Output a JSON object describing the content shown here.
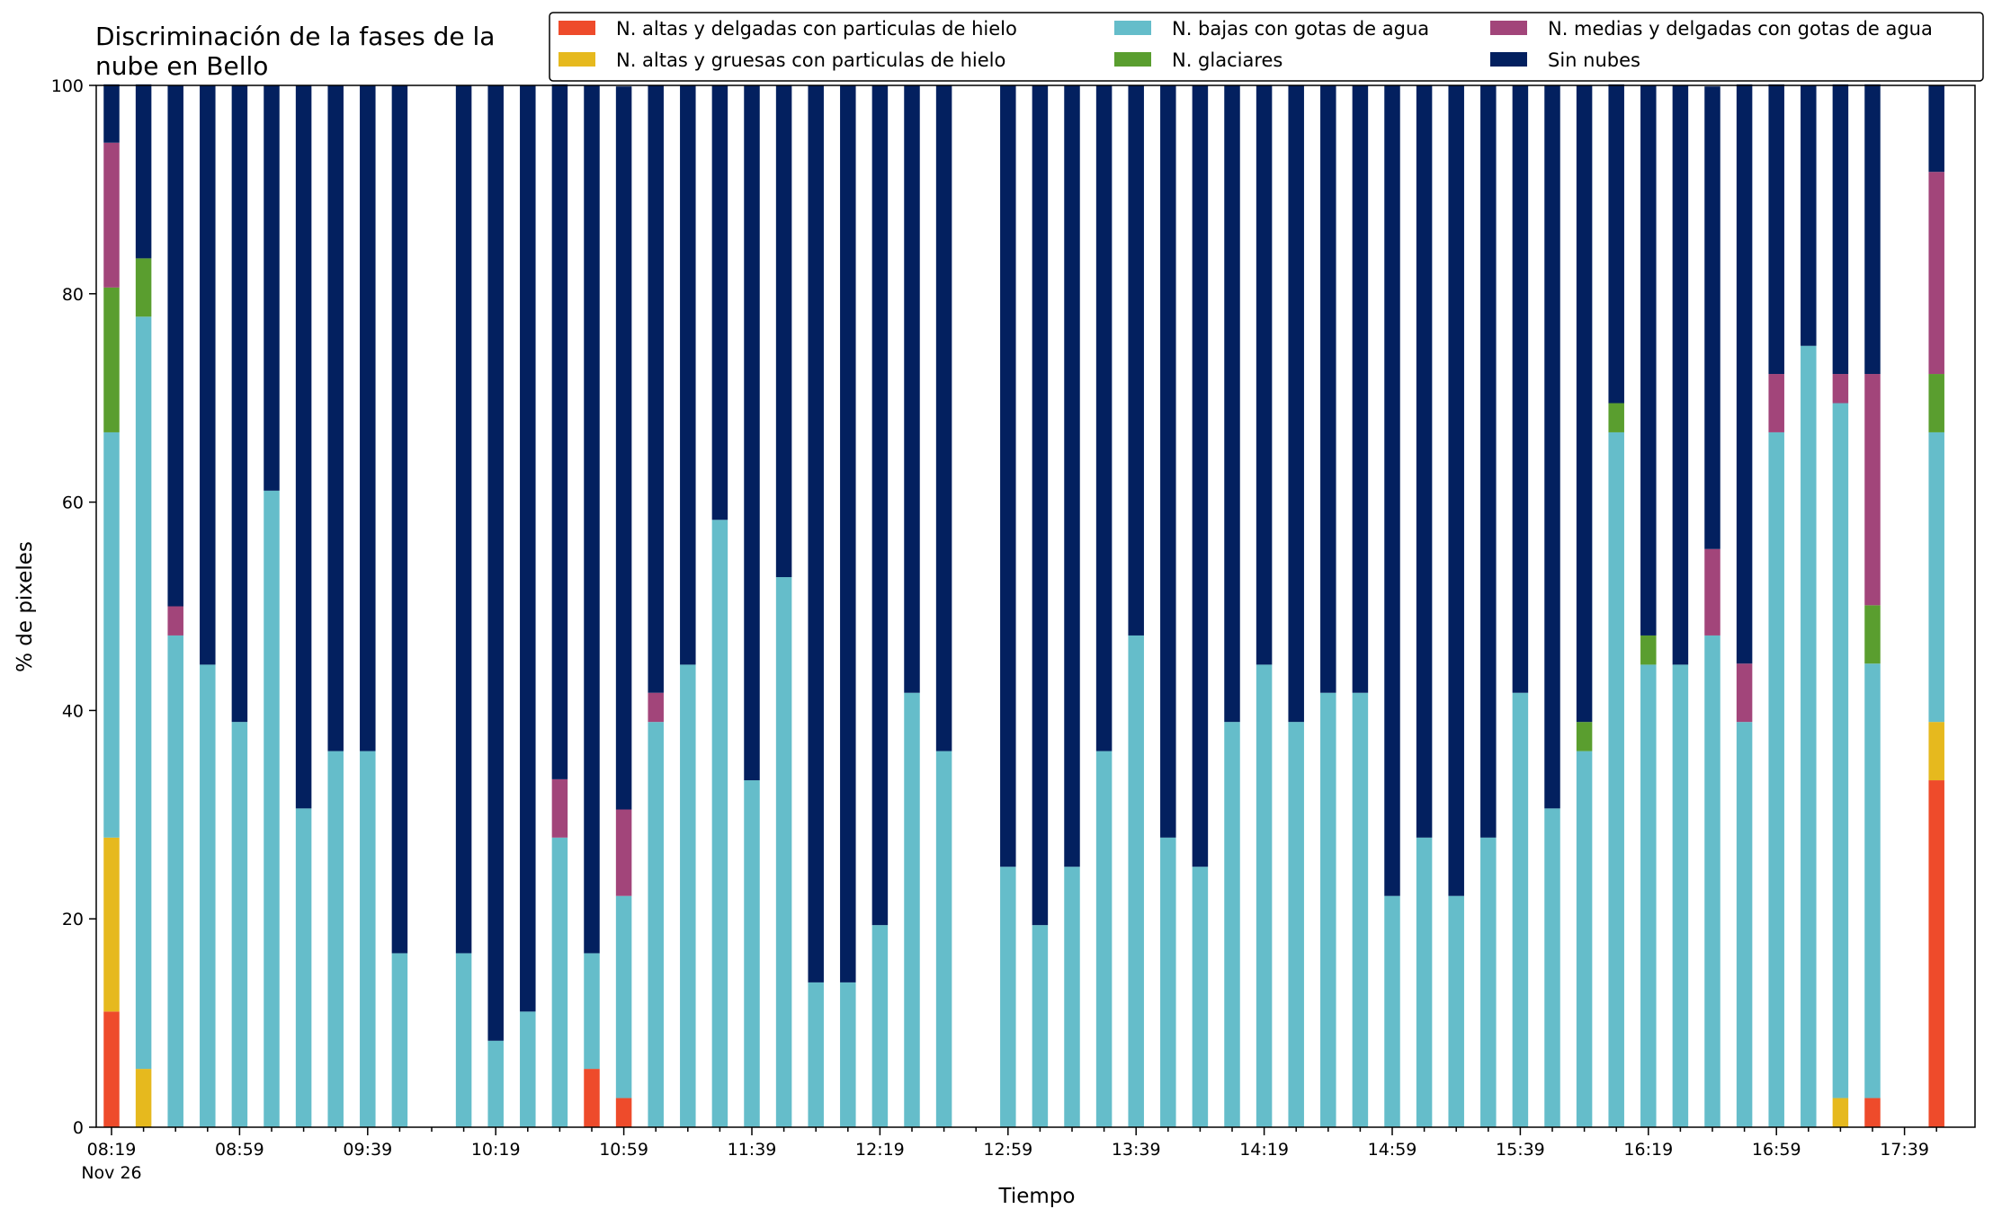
{
  "chart_data": {
    "type": "bar",
    "stacked": true,
    "title_lines": [
      "Discriminación de la fases de la",
      "nube en Bello"
    ],
    "xlabel": "Tiempo",
    "ylabel": "% de pixeles",
    "ylim": [
      0,
      100
    ],
    "yticks": [
      0,
      20,
      40,
      60,
      80,
      100
    ],
    "grid": false,
    "legend_position": "top-right",
    "x_tick_labels": [
      "08:19",
      "08:59",
      "09:39",
      "10:19",
      "10:59",
      "11:39",
      "12:19",
      "12:59",
      "13:39",
      "14:19",
      "14:59",
      "15:39",
      "16:19",
      "16:59",
      "17:39"
    ],
    "x_tick_sublabel": "Nov 26",
    "major_tick_slots": [
      0,
      4,
      8,
      12,
      16,
      20,
      24,
      28,
      32,
      36,
      40,
      44,
      48,
      52,
      56
    ],
    "time_slots": [
      "08:19",
      "08:29",
      "08:39",
      "08:49",
      "08:59",
      "09:09",
      "09:19",
      "09:29",
      "09:39",
      "09:49",
      "09:59",
      "10:09",
      "10:19",
      "10:29",
      "10:39",
      "10:49",
      "10:59",
      "11:09",
      "11:19",
      "11:29",
      "11:39",
      "11:49",
      "11:59",
      "12:09",
      "12:19",
      "12:29",
      "12:39",
      "12:49",
      "12:59",
      "13:09",
      "13:19",
      "13:29",
      "13:39",
      "13:49",
      "13:59",
      "14:09",
      "14:19",
      "14:29",
      "14:39",
      "14:49",
      "14:59",
      "15:09",
      "15:19",
      "15:29",
      "15:39",
      "15:49",
      "15:59",
      "16:09",
      "16:19",
      "16:29",
      "16:39",
      "16:49",
      "16:59",
      "17:09",
      "17:19",
      "17:29",
      "17:39",
      "17:49"
    ],
    "series": [
      {
        "name": "N. altas y delgadas con particulas de hielo",
        "color": "#ee4b2b",
        "values": [
          11.1,
          0,
          0,
          0,
          0,
          0,
          0,
          0,
          0,
          0,
          null,
          0,
          0,
          0,
          0,
          5.6,
          2.8,
          0,
          0,
          0,
          0,
          0,
          0,
          0,
          0,
          0,
          0,
          null,
          0,
          0,
          0,
          0,
          0,
          0,
          0,
          0,
          0,
          0,
          0,
          0,
          0,
          0,
          0,
          0,
          0,
          0,
          0,
          0,
          0,
          0,
          0,
          0,
          0,
          0,
          0,
          2.8,
          null,
          33.3
        ]
      },
      {
        "name": "N. altas y gruesas con particulas de hielo",
        "color": "#e6b91e",
        "values": [
          16.7,
          5.6,
          0,
          0,
          0,
          0,
          0,
          0,
          0,
          0,
          null,
          0,
          0,
          0,
          0,
          0,
          0,
          0,
          0,
          0,
          0,
          0,
          0,
          0,
          0,
          0,
          0,
          null,
          0,
          0,
          0,
          0,
          0,
          0,
          0,
          0,
          0,
          0,
          0,
          0,
          0,
          0,
          0,
          0,
          0,
          0,
          0,
          0,
          0,
          0,
          0,
          0,
          0,
          0,
          2.8,
          0,
          null,
          5.6
        ]
      },
      {
        "name": "N. bajas con gotas de agua",
        "color": "#65bdca",
        "values": [
          38.9,
          72.2,
          47.2,
          44.4,
          38.9,
          61.1,
          30.6,
          36.1,
          36.1,
          16.7,
          null,
          16.7,
          8.3,
          11.1,
          27.8,
          11.1,
          19.4,
          38.9,
          44.4,
          58.3,
          33.3,
          52.8,
          13.9,
          13.9,
          19.4,
          41.7,
          36.1,
          null,
          25.0,
          19.4,
          25.0,
          36.1,
          47.2,
          27.8,
          25.0,
          38.9,
          44.4,
          38.9,
          41.7,
          41.7,
          22.2,
          27.8,
          22.2,
          27.8,
          41.7,
          30.6,
          36.1,
          66.7,
          44.4,
          44.4,
          47.2,
          38.9,
          66.7,
          75.0,
          66.7,
          41.7,
          null,
          27.8
        ]
      },
      {
        "name": "N. glaciares",
        "color": "#5a9e2f",
        "values": [
          13.9,
          5.6,
          0,
          0,
          0,
          0,
          0,
          0,
          0,
          0,
          null,
          0,
          0,
          0,
          0,
          0,
          0,
          0,
          0,
          0,
          0,
          0,
          0,
          0,
          0,
          0,
          0,
          null,
          0,
          0,
          0,
          0,
          0,
          0,
          0,
          0,
          0,
          0,
          0,
          0,
          0,
          0,
          0,
          0,
          0,
          0,
          2.8,
          2.8,
          2.8,
          0,
          0,
          0,
          0,
          0,
          0,
          5.6,
          null,
          5.6
        ]
      },
      {
        "name": "N. medias y delgadas con gotas de agua",
        "color": "#a2457a",
        "values": [
          13.9,
          0,
          2.8,
          0,
          0,
          0,
          0,
          0,
          0,
          0,
          null,
          0,
          0,
          0,
          5.6,
          0,
          8.3,
          2.8,
          0,
          0,
          0,
          0,
          0,
          0,
          0,
          0,
          0,
          null,
          0,
          0,
          0,
          0,
          0,
          0,
          0,
          0,
          0,
          0,
          0,
          0,
          0,
          0,
          0,
          0,
          0,
          0,
          0,
          0,
          0,
          0,
          8.3,
          5.6,
          5.6,
          0,
          2.8,
          22.2,
          null,
          19.4
        ]
      },
      {
        "name": "Sin nubes",
        "color": "#03205f",
        "values": [
          5.6,
          16.7,
          50.0,
          55.6,
          61.1,
          38.9,
          69.4,
          63.9,
          63.9,
          83.3,
          null,
          83.3,
          91.7,
          88.9,
          66.7,
          83.3,
          69.4,
          58.3,
          55.6,
          41.7,
          66.7,
          47.2,
          86.1,
          86.1,
          80.6,
          58.3,
          63.9,
          null,
          75.0,
          80.6,
          75.0,
          63.9,
          52.8,
          72.2,
          75.0,
          61.1,
          55.6,
          61.1,
          58.3,
          58.3,
          77.8,
          72.2,
          77.8,
          72.2,
          58.3,
          69.4,
          61.1,
          30.6,
          52.8,
          55.6,
          44.4,
          55.6,
          27.8,
          25.0,
          27.8,
          27.8,
          null,
          8.3
        ]
      }
    ]
  }
}
